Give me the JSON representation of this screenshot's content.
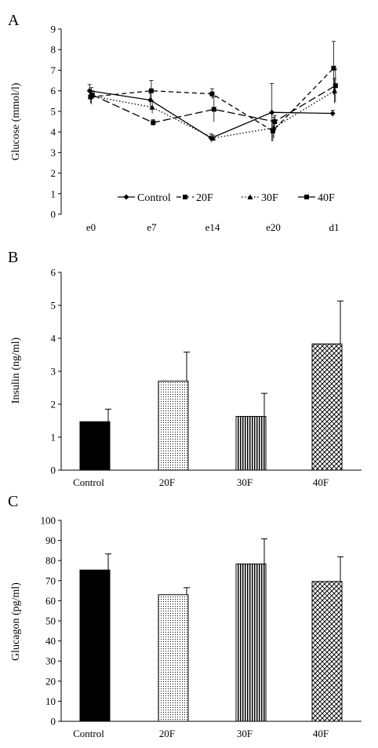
{
  "panels": {
    "a": {
      "letter": "A"
    },
    "b": {
      "letter": "B"
    },
    "c": {
      "letter": "C"
    }
  },
  "colors": {
    "ink": "#000000",
    "background": "#ffffff"
  },
  "chart_data": [
    {
      "type": "line",
      "title": "",
      "xlabel": "",
      "ylabel": "Glucose (mmol/l)",
      "ylim": [
        0,
        9
      ],
      "yticks": [
        0,
        1,
        2,
        3,
        4,
        5,
        6,
        7,
        8,
        9
      ],
      "categories": [
        "e0",
        "e7",
        "e14",
        "e20",
        "d1"
      ],
      "grid": false,
      "legend": "bottom-right, inside plot",
      "series": [
        {
          "name": "Control",
          "style": "solid",
          "marker": "diamond",
          "values": [
            6.0,
            5.55,
            3.7,
            4.95,
            4.9
          ],
          "errors": [
            0.3,
            0.35,
            0.2,
            1.4,
            0.15
          ]
        },
        {
          "name": "20F",
          "style": "dashed",
          "marker": "square",
          "values": [
            5.7,
            6.0,
            5.85,
            4.05,
            7.1
          ],
          "errors": [
            0.3,
            0.5,
            0.25,
            0.5,
            1.3
          ]
        },
        {
          "name": "30F",
          "style": "dotted",
          "marker": "triangle",
          "values": [
            5.75,
            5.2,
            3.7,
            4.2,
            6.0
          ],
          "errors": [
            0.4,
            0.3,
            0.15,
            0.5,
            0.6
          ]
        },
        {
          "name": "40F",
          "style": "longdash",
          "marker": "square",
          "values": [
            5.8,
            4.45,
            5.1,
            4.5,
            6.25
          ],
          "errors": [
            0.2,
            0.15,
            0.6,
            0.3,
            0.8
          ]
        }
      ]
    },
    {
      "type": "bar",
      "title": "",
      "xlabel": "",
      "ylabel": "Insulin (ng/ml)",
      "ylim": [
        0,
        6
      ],
      "yticks": [
        0,
        1,
        2,
        3,
        4,
        5,
        6
      ],
      "categories": [
        "Control",
        "20F",
        "30F",
        "40F"
      ],
      "values": [
        1.47,
        2.7,
        1.63,
        3.83
      ],
      "errors": [
        0.38,
        0.88,
        0.7,
        1.3
      ],
      "fills": [
        "solid",
        "fine-dots",
        "vertical-lines",
        "crosshatch"
      ],
      "grid": false
    },
    {
      "type": "bar",
      "title": "",
      "xlabel": "",
      "ylabel": "Glucagon (pg/ml)",
      "ylim": [
        0,
        100
      ],
      "yticks": [
        0,
        10,
        20,
        30,
        40,
        50,
        60,
        70,
        80,
        90,
        100
      ],
      "categories": [
        "Control",
        "20F",
        "30F",
        "40F"
      ],
      "values": [
        75.3,
        63.0,
        78.3,
        69.6
      ],
      "errors": [
        8.0,
        3.5,
        12.5,
        12.3
      ],
      "fills": [
        "solid",
        "fine-dots",
        "vertical-lines",
        "crosshatch"
      ],
      "grid": false
    }
  ]
}
